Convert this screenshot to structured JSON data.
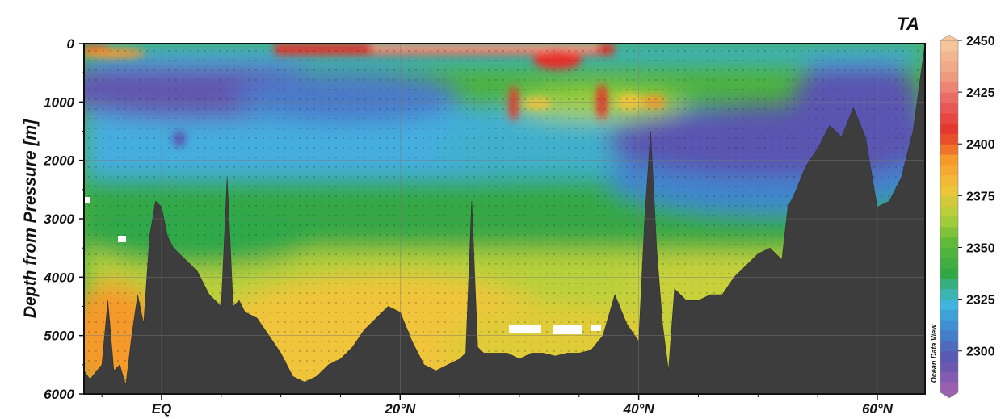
{
  "chart_data": {
    "type": "heatmap",
    "title": "TA",
    "ylabel": "Depth from Pressure [m]",
    "xlabel": "",
    "y_ticks": [
      0,
      1000,
      2000,
      3000,
      4000,
      5000,
      6000
    ],
    "y_tick_labels": [
      "0",
      "1000",
      "2000",
      "3000",
      "4000",
      "5000",
      "6000"
    ],
    "ylim": [
      0,
      6000
    ],
    "y_inverted": true,
    "xlim": [
      -6.5,
      64
    ],
    "x_ticks": [
      0,
      20,
      40,
      60
    ],
    "x_tick_labels": [
      "EQ",
      "20°N",
      "40°N",
      "60°N"
    ],
    "grid": true,
    "colorbar": {
      "label": "TA",
      "ticks": [
        2300,
        2325,
        2350,
        2375,
        2400,
        2425,
        2450
      ],
      "tick_labels": [
        "2300",
        "2325",
        "2350",
        "2375",
        "2400",
        "2425",
        "2450"
      ],
      "range": [
        2280,
        2450
      ],
      "colors": [
        "#9b5fb0",
        "#5a55b0",
        "#3f86cf",
        "#3fb9de",
        "#32a845",
        "#58b83a",
        "#b0cf3a",
        "#f2c43a",
        "#f59a2a",
        "#e5322a",
        "#e96060",
        "#eea082",
        "#f4c49a"
      ]
    },
    "watermark": "Ocean Data View",
    "bathymetry": {
      "lat": [
        -6.5,
        -6,
        -5,
        -4.5,
        -4,
        -3.5,
        -3,
        -2.5,
        -2,
        -1.5,
        -1,
        -0.5,
        0,
        0.5,
        1,
        2,
        3,
        4,
        5,
        5.5,
        6,
        6.5,
        7,
        8,
        9,
        10,
        11,
        12,
        13,
        14,
        15,
        16,
        17,
        18,
        19,
        20,
        21,
        22,
        23,
        24,
        25,
        25.5,
        26,
        26.5,
        27,
        28,
        29,
        30,
        31,
        32,
        33,
        34,
        35,
        36,
        37,
        38,
        39,
        40,
        40.5,
        41,
        41.5,
        42,
        42.5,
        43,
        44,
        45,
        46,
        47,
        48,
        49,
        50,
        51,
        52,
        52.5,
        53,
        54,
        55,
        56,
        57,
        58,
        59,
        60,
        61,
        62,
        63,
        64
      ],
      "depth": [
        5600,
        5750,
        5500,
        4400,
        5600,
        5500,
        5850,
        5000,
        4300,
        4800,
        3300,
        2700,
        2800,
        3300,
        3500,
        3700,
        3900,
        4300,
        4500,
        2300,
        4500,
        4400,
        4600,
        4700,
        5000,
        5300,
        5700,
        5800,
        5700,
        5500,
        5400,
        5200,
        4900,
        4700,
        4500,
        4600,
        5100,
        5500,
        5600,
        5500,
        5400,
        5300,
        2700,
        5200,
        5300,
        5300,
        5300,
        5400,
        5300,
        5300,
        5350,
        5300,
        5300,
        5250,
        5000,
        4300,
        4800,
        5100,
        3000,
        1500,
        3500,
        4800,
        5600,
        4200,
        4400,
        4400,
        4300,
        4300,
        4000,
        3800,
        3600,
        3500,
        3700,
        2800,
        2600,
        2100,
        1800,
        1400,
        1600,
        1100,
        1600,
        2800,
        2700,
        2300,
        1500,
        0
      ]
    }
  }
}
